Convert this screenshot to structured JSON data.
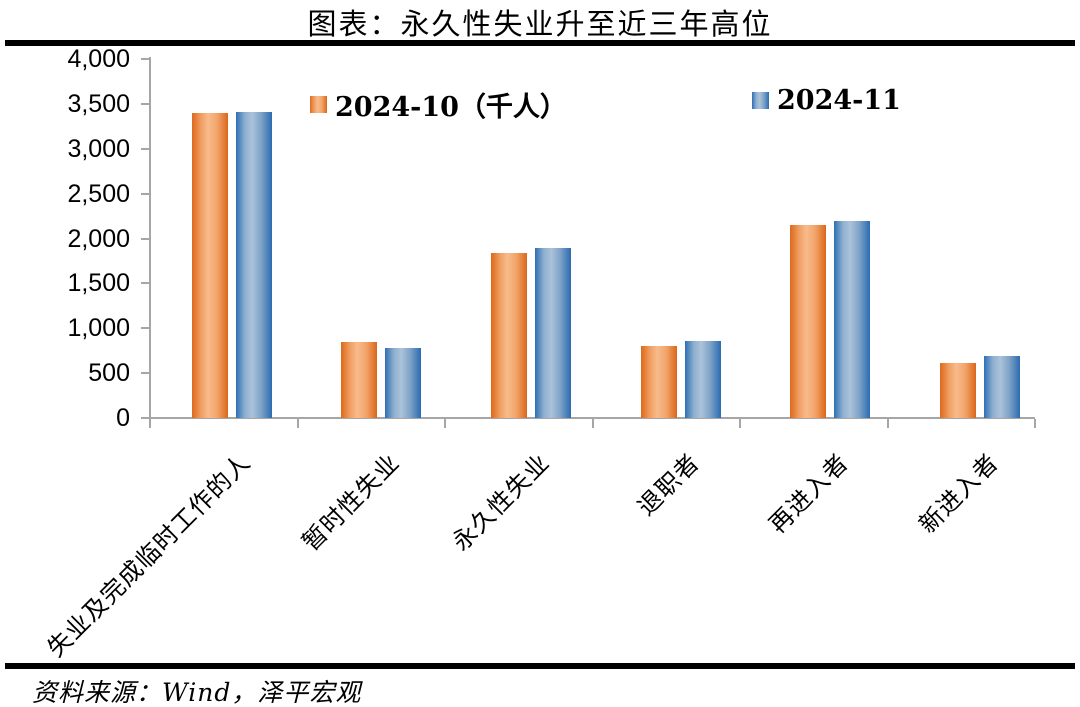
{
  "title": "图表：永久性失业升至近三年高位",
  "source": "资料来源：Wind，泽平宏观",
  "legend": {
    "items": [
      {
        "label": "2024-10（千人）",
        "color": "#ed7d31"
      },
      {
        "label": "2024-11",
        "color": "#4472c4"
      }
    ]
  },
  "y_axis": {
    "tick_values": [
      0,
      500,
      1000,
      1500,
      2000,
      2500,
      3000,
      3500,
      4000
    ],
    "tick_labels": [
      "0",
      "500",
      "1,000",
      "1,500",
      "2,000",
      "2,500",
      "3,000",
      "3,500",
      "4,000"
    ]
  },
  "chart_data": {
    "type": "bar",
    "title": "图表：永久性失业升至近三年高位",
    "unit": "千人",
    "categories": [
      "失业及完成临时工作的人",
      "暂时性失业",
      "永久性失业",
      "退职者",
      "再进入者",
      "新进入者"
    ],
    "series": [
      {
        "name": "2024-10（千人）",
        "color": "#ed7d31",
        "values": [
          3400,
          850,
          1840,
          800,
          2150,
          610
        ]
      },
      {
        "name": "2024-11",
        "color": "#4472c4",
        "values": [
          3410,
          780,
          1890,
          860,
          2190,
          690
        ]
      }
    ],
    "xlabel": "",
    "ylabel": "",
    "ylim": [
      0,
      4000
    ],
    "ytick_interval": 500,
    "grid": false,
    "legend_position": "top-inside",
    "axis_color": "#a6a6a6",
    "background": "#ffffff"
  }
}
